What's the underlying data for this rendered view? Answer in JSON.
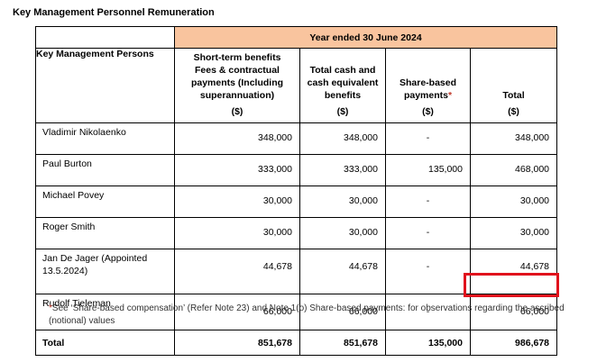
{
  "title": "Key Management Personnel Remuneration",
  "period": "Year ended 30 June 2024",
  "headers": {
    "persons": "Key Management Persons",
    "col1": [
      "Short-term benefits",
      "Fees & contractual",
      "payments (Including",
      "superannuation)",
      "($)"
    ],
    "col2": [
      "Total cash and",
      "cash equivalent",
      "benefits",
      "($)"
    ],
    "col3_line1": "Share-based",
    "col3_line2": "payments",
    "col3_mark": "*",
    "col3_unit": "($)",
    "col4": [
      "Total",
      "($)"
    ]
  },
  "rows": [
    {
      "name": "Vladimir Nikolaenko",
      "st": "348,000",
      "cash": "348,000",
      "sbp": "-",
      "total": "348,000"
    },
    {
      "name": "Paul Burton",
      "st": "333,000",
      "cash": "333,000",
      "sbp": "135,000",
      "total": "468,000"
    },
    {
      "name": "Michael Povey",
      "st": "30,000",
      "cash": "30,000",
      "sbp": "-",
      "total": "30,000"
    },
    {
      "name": "Roger Smith",
      "st": "30,000",
      "cash": "30,000",
      "sbp": "-",
      "total": "30,000"
    },
    {
      "name": "Jan De Jager (Appointed 13.5.2024)",
      "st": "44,678",
      "cash": "44,678",
      "sbp": "-",
      "total": "44,678"
    },
    {
      "name": "Rudolf Tieleman",
      "st": "66,000",
      "cash": "66,000",
      "sbp": "-",
      "total": "66,000"
    }
  ],
  "total": {
    "label": "Total",
    "st": "851,678",
    "cash": "851,678",
    "sbp": "135,000",
    "total": "986,678"
  },
  "footnote": {
    "mark": "*",
    "text": "See ‘Share-based compensation’ (Refer Note 23) and Note 1(o) Share-based payments: for observations regarding the ascribed (notional) values"
  },
  "highlight_color": "#e0121c"
}
